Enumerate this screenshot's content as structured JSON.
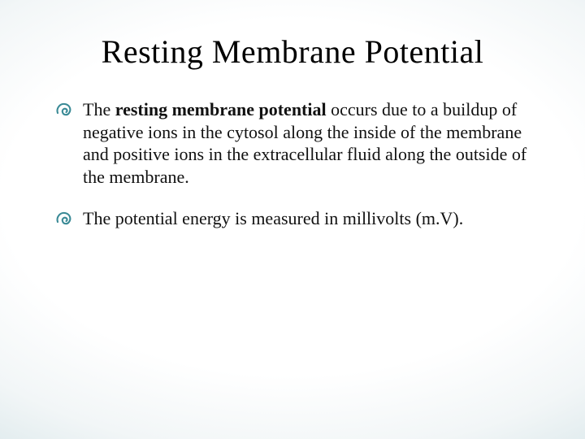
{
  "slide": {
    "title": "Resting Membrane Potential",
    "title_fontsize": 40,
    "title_color": "#000000",
    "body_fontsize": 22,
    "body_color": "#111111",
    "bullet_color": "#3a8a96",
    "background": {
      "type": "radial-vignette",
      "center_color": "#ffffff",
      "edge_color": "#c2d9de"
    },
    "bullets": [
      {
        "runs": [
          {
            "text": "The ",
            "bold": false
          },
          {
            "text": "resting membrane potential ",
            "bold": true
          },
          {
            "text": "occurs due to a buildup of negative ions in the cytosol along the inside of the membrane and positive ions in the extracellular fluid along the outside of the membrane.",
            "bold": false
          }
        ]
      },
      {
        "runs": [
          {
            "text": "The potential energy is measured in millivolts (m.V).",
            "bold": false
          }
        ]
      }
    ]
  }
}
